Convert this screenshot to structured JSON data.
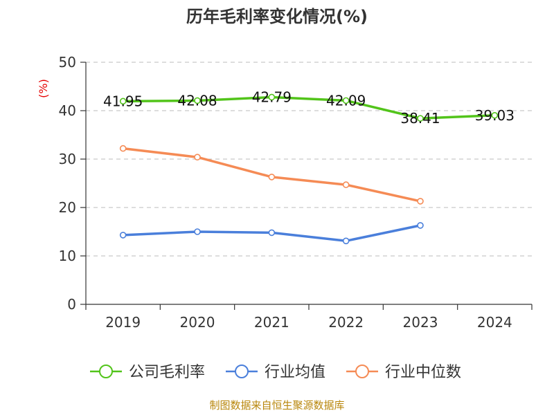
{
  "colors": {
    "series": [
      "#52c41a",
      "#4a7fdb",
      "#f58b55"
    ],
    "source": "#b8860b",
    "unit": "#e60000"
  },
  "chart_data": {
    "type": "line",
    "title": "历年毛利率变化情况(%)",
    "ylabel": "(%)",
    "xlabel": "",
    "categories": [
      "2019",
      "2020",
      "2021",
      "2022",
      "2023",
      "2024"
    ],
    "ylim": [
      0,
      50
    ],
    "yticks": [
      0,
      10,
      20,
      30,
      40,
      50
    ],
    "grid": true,
    "legend_position": "bottom",
    "series": [
      {
        "name": "公司毛利率",
        "values": [
          41.95,
          42.08,
          42.79,
          42.09,
          38.41,
          39.03
        ],
        "labels": [
          "41.95",
          "42.08",
          "42.79",
          "42.09",
          "38.41",
          "39.03"
        ]
      },
      {
        "name": "行业均值",
        "values": [
          14.3,
          15.0,
          14.8,
          13.1,
          16.3,
          null
        ]
      },
      {
        "name": "行业中位数",
        "values": [
          32.2,
          30.4,
          26.3,
          24.7,
          21.3,
          null
        ]
      }
    ]
  },
  "source_text": "制图数据来自恒生聚源数据库"
}
